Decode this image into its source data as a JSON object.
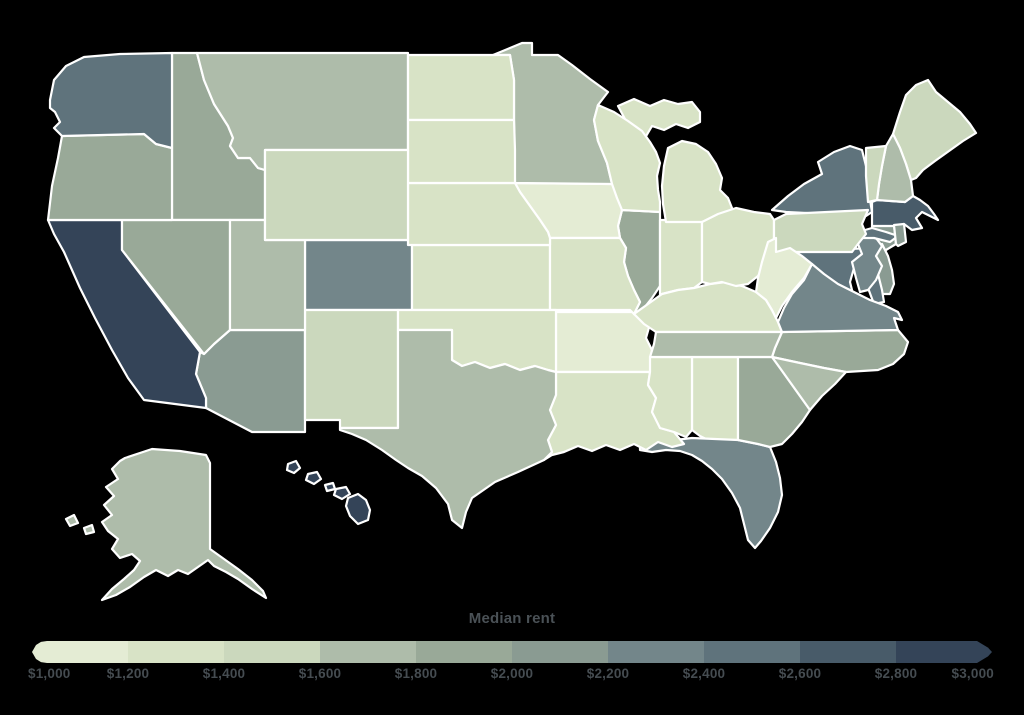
{
  "page": {
    "background_color": "#000000"
  },
  "chart_data": {
    "type": "choropleth",
    "title": "Median rent",
    "region": "United States by state",
    "unit": "USD per month",
    "legend": {
      "title": "Median rent",
      "position": "bottom",
      "min": 1000,
      "max": 3000,
      "step": 200,
      "tick_labels": [
        "$1,000",
        "$1,200",
        "$1,400",
        "$1,600",
        "$1,800",
        "$2,000",
        "$2,200",
        "$2,400",
        "$2,600",
        "$2,800",
        "$3,000"
      ],
      "colors": [
        "#e4ecd4",
        "#d8e3c6",
        "#cbd8bd",
        "#aebcaa",
        "#99a998",
        "#8a9b92",
        "#73868a",
        "#5f737c",
        "#485b69",
        "#344458"
      ],
      "text_color": "#454c51"
    },
    "border_color": "#ffffff",
    "states": [
      {
        "abbr": "AL",
        "name": "Alabama",
        "median_rent": 1350
      },
      {
        "abbr": "AK",
        "name": "Alaska",
        "median_rent": 1750
      },
      {
        "abbr": "AZ",
        "name": "Arizona",
        "median_rent": 2100
      },
      {
        "abbr": "AR",
        "name": "Arkansas",
        "median_rent": 1100
      },
      {
        "abbr": "CA",
        "name": "California",
        "median_rent": 2900
      },
      {
        "abbr": "CO",
        "name": "Colorado",
        "median_rent": 2250
      },
      {
        "abbr": "CT",
        "name": "Connecticut",
        "median_rent": 2050
      },
      {
        "abbr": "DE",
        "name": "Delaware",
        "median_rent": 2150
      },
      {
        "abbr": "FL",
        "name": "Florida",
        "median_rent": 2250
      },
      {
        "abbr": "GA",
        "name": "Georgia",
        "median_rent": 1900
      },
      {
        "abbr": "HI",
        "name": "Hawaii",
        "median_rent": 2950
      },
      {
        "abbr": "ID",
        "name": "Idaho",
        "median_rent": 1850
      },
      {
        "abbr": "IL",
        "name": "Illinois",
        "median_rent": 1900
      },
      {
        "abbr": "IN",
        "name": "Indiana",
        "median_rent": 1350
      },
      {
        "abbr": "IA",
        "name": "Iowa",
        "median_rent": 1150
      },
      {
        "abbr": "KS",
        "name": "Kansas",
        "median_rent": 1350
      },
      {
        "abbr": "KY",
        "name": "Kentucky",
        "median_rent": 1250
      },
      {
        "abbr": "LA",
        "name": "Louisiana",
        "median_rent": 1350
      },
      {
        "abbr": "ME",
        "name": "Maine",
        "median_rent": 1500
      },
      {
        "abbr": "MD",
        "name": "Maryland",
        "median_rent": 2500
      },
      {
        "abbr": "MA",
        "name": "Massachusetts",
        "median_rent": 2650
      },
      {
        "abbr": "MI",
        "name": "Michigan",
        "median_rent": 1380
      },
      {
        "abbr": "MN",
        "name": "Minnesota",
        "median_rent": 1650
      },
      {
        "abbr": "MS",
        "name": "Mississippi",
        "median_rent": 1300
      },
      {
        "abbr": "MO",
        "name": "Missouri",
        "median_rent": 1300
      },
      {
        "abbr": "MT",
        "name": "Montana",
        "median_rent": 1650
      },
      {
        "abbr": "NE",
        "name": "Nebraska",
        "median_rent": 1380
      },
      {
        "abbr": "NV",
        "name": "Nevada",
        "median_rent": 1950
      },
      {
        "abbr": "NH",
        "name": "New Hampshire",
        "median_rent": 1750
      },
      {
        "abbr": "NJ",
        "name": "New Jersey",
        "median_rent": 2300
      },
      {
        "abbr": "NM",
        "name": "New Mexico",
        "median_rent": 1450
      },
      {
        "abbr": "NY",
        "name": "New York",
        "median_rent": 2450
      },
      {
        "abbr": "NC",
        "name": "North Carolina",
        "median_rent": 1900
      },
      {
        "abbr": "ND",
        "name": "North Dakota",
        "median_rent": 1250
      },
      {
        "abbr": "OH",
        "name": "Ohio",
        "median_rent": 1350
      },
      {
        "abbr": "OK",
        "name": "Oklahoma",
        "median_rent": 1350
      },
      {
        "abbr": "OR",
        "name": "Oregon",
        "median_rent": 1850
      },
      {
        "abbr": "PA",
        "name": "Pennsylvania",
        "median_rent": 1500
      },
      {
        "abbr": "RI",
        "name": "Rhode Island",
        "median_rent": 2150
      },
      {
        "abbr": "SC",
        "name": "South Carolina",
        "median_rent": 1650
      },
      {
        "abbr": "SD",
        "name": "South Dakota",
        "median_rent": 1250
      },
      {
        "abbr": "TN",
        "name": "Tennessee",
        "median_rent": 1650
      },
      {
        "abbr": "TX",
        "name": "Texas",
        "median_rent": 1700
      },
      {
        "abbr": "UT",
        "name": "Utah",
        "median_rent": 1650
      },
      {
        "abbr": "VT",
        "name": "Vermont",
        "median_rent": 1550
      },
      {
        "abbr": "VA",
        "name": "Virginia",
        "median_rent": 2250
      },
      {
        "abbr": "WA",
        "name": "Washington",
        "median_rent": 2450
      },
      {
        "abbr": "WV",
        "name": "West Virginia",
        "median_rent": 1050
      },
      {
        "abbr": "WI",
        "name": "Wisconsin",
        "median_rent": 1350
      },
      {
        "abbr": "WY",
        "name": "Wyoming",
        "median_rent": 1450
      }
    ]
  }
}
